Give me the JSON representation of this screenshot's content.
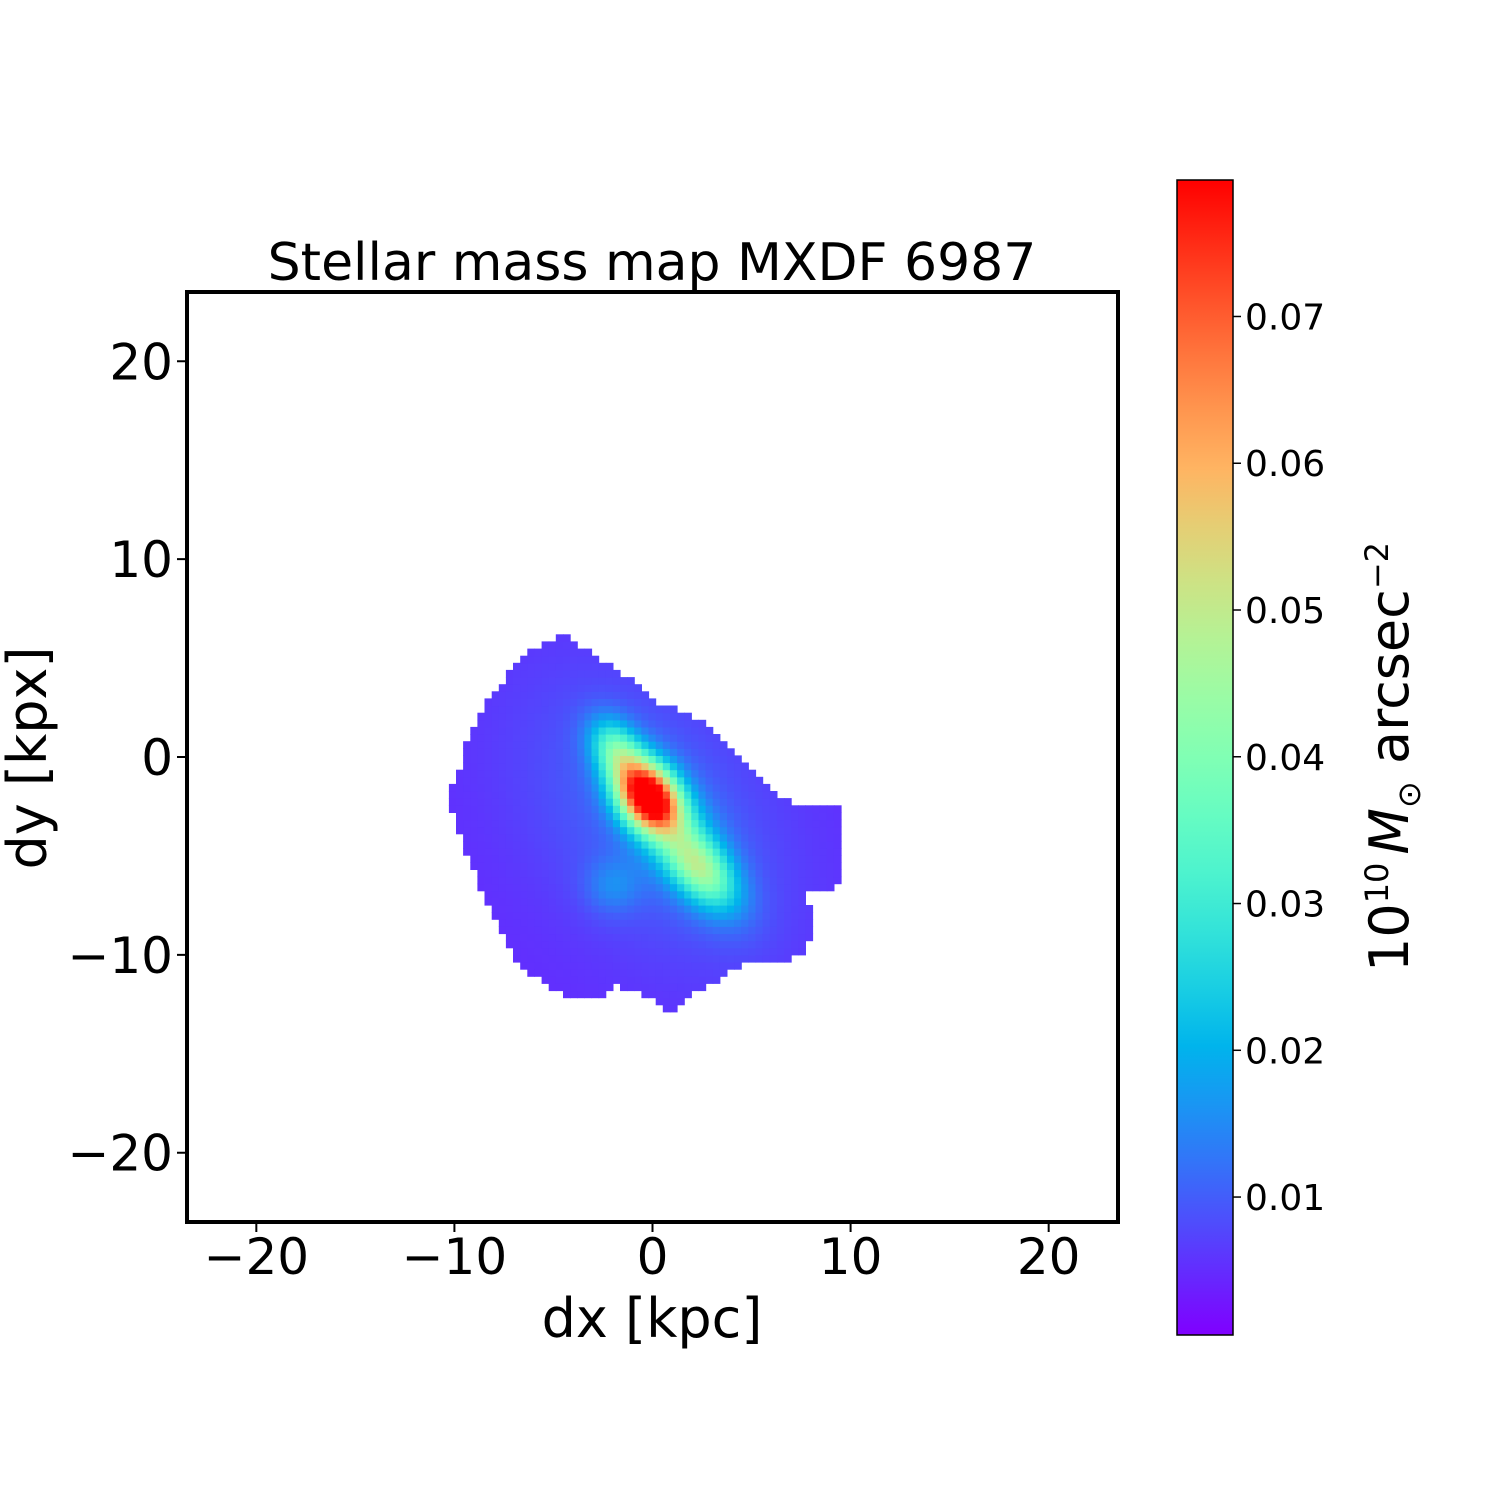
{
  "chart_data": {
    "type": "heatmap",
    "title": "Stellar mass map MXDF 6987",
    "xlabel": "dx [kpc]",
    "ylabel": "dy [kpx]",
    "xlim": [
      -23.5,
      23.5
    ],
    "ylim": [
      -23.5,
      23.5
    ],
    "xticks": [
      -20,
      -10,
      0,
      10,
      20
    ],
    "yticks": [
      -20,
      -10,
      0,
      10,
      20
    ],
    "xtick_labels": [
      "−20",
      "−10",
      "0",
      "10",
      "20"
    ],
    "ytick_labels": [
      "−20",
      "−10",
      "0",
      "10",
      "20"
    ],
    "colormap": "rainbow",
    "colorbar": {
      "range": [
        0.0006,
        0.0793
      ],
      "ticks": [
        0.01,
        0.02,
        0.03,
        0.04,
        0.05,
        0.06,
        0.07
      ],
      "tick_labels": [
        "0.01",
        "0.02",
        "0.03",
        "0.04",
        "0.05",
        "0.06",
        "0.07"
      ],
      "label_base": "10",
      "label_exp1": "10",
      "label_sym": "M",
      "label_sub": "⊙",
      "label_unit": " arcsec",
      "label_exp2": "−2"
    },
    "background_level": 0.005,
    "components": [
      {
        "name": "core",
        "dx": -0.2,
        "dy": -2.0,
        "peak": 0.075,
        "sigma_major": 1.3,
        "sigma_minor": 0.95,
        "angle_deg": -55
      },
      {
        "name": "north-knot",
        "dx": -1.8,
        "dy": 0.3,
        "peak": 0.025,
        "sigma_major": 1.2,
        "sigma_minor": 0.8,
        "angle_deg": -60
      },
      {
        "name": "south-knot",
        "dx": 2.4,
        "dy": -5.6,
        "peak": 0.028,
        "sigma_major": 1.6,
        "sigma_minor": 0.9,
        "angle_deg": -50
      },
      {
        "name": "bridge",
        "dx": 1.2,
        "dy": -3.8,
        "peak": 0.014,
        "sigma_major": 3.0,
        "sigma_minor": 1.3,
        "angle_deg": -55
      },
      {
        "name": "faint-knot",
        "dx": -2.0,
        "dy": -6.5,
        "peak": 0.007,
        "sigma_major": 1.0,
        "sigma_minor": 1.0,
        "angle_deg": 0
      },
      {
        "name": "envelope",
        "dx": 0.0,
        "dy": -3.0,
        "peak": 0.006,
        "sigma_major": 6.0,
        "sigma_minor": 4.0,
        "angle_deg": -50
      }
    ],
    "mask_outline_kpc": [
      [
        -4.4,
        6.2
      ],
      [
        -2.6,
        4.9
      ],
      [
        -1.1,
        3.9
      ],
      [
        0.4,
        2.7
      ],
      [
        2.4,
        1.9
      ],
      [
        4.5,
        -0.1
      ],
      [
        7.0,
        -2.4
      ],
      [
        9.6,
        -2.6
      ],
      [
        9.6,
        -4.5
      ],
      [
        9.3,
        -6.6
      ],
      [
        7.5,
        -6.7
      ],
      [
        8.3,
        -8.2
      ],
      [
        7.5,
        -10.1
      ],
      [
        4.7,
        -10.5
      ],
      [
        2.4,
        -11.7
      ],
      [
        0.9,
        -13.2
      ],
      [
        -0.1,
        -12.2
      ],
      [
        -2.1,
        -11.5
      ],
      [
        -2.4,
        -12.2
      ],
      [
        -4.2,
        -12.2
      ],
      [
        -6.7,
        -10.7
      ],
      [
        -7.7,
        -8.7
      ],
      [
        -8.7,
        -6.7
      ],
      [
        -10.0,
        -3.1
      ],
      [
        -10.4,
        -2.1
      ],
      [
        -9.7,
        -0.6
      ],
      [
        -9.2,
        1.4
      ],
      [
        -7.9,
        3.4
      ],
      [
        -6.7,
        4.9
      ],
      [
        -5.7,
        5.7
      ]
    ]
  }
}
